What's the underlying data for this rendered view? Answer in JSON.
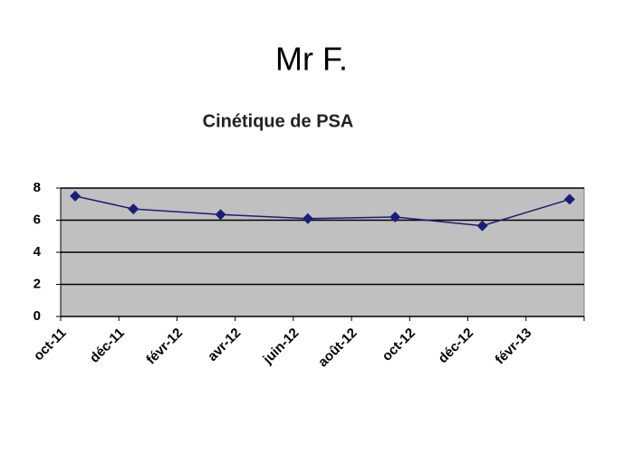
{
  "header": {
    "title": "Mr F."
  },
  "chart_data": {
    "type": "line",
    "title": "Cinétique de PSA",
    "x": [
      "2011-10",
      "2011-12",
      "2012-03",
      "2012-06",
      "2012-09",
      "2012-12",
      "2013-03"
    ],
    "values": [
      7.5,
      6.7,
      6.35,
      6.1,
      6.2,
      5.65,
      7.3
    ],
    "color": "#1c1c78",
    "xlim": [
      "2011-10",
      "2013-04"
    ],
    "xticks": [
      {
        "value": "2011-10",
        "label": "oct-11"
      },
      {
        "value": "2011-12",
        "label": "déc-11"
      },
      {
        "value": "2012-02",
        "label": "févr-12"
      },
      {
        "value": "2012-04",
        "label": "avr-12"
      },
      {
        "value": "2012-06",
        "label": "juin-12"
      },
      {
        "value": "2012-08",
        "label": "août-12"
      },
      {
        "value": "2012-10",
        "label": "oct-12"
      },
      {
        "value": "2012-12",
        "label": "déc-12"
      },
      {
        "value": "2013-02",
        "label": "févr-13"
      }
    ],
    "ylim": [
      0,
      8
    ],
    "yticks": [
      0,
      2,
      4,
      6,
      8
    ],
    "grid": true
  }
}
